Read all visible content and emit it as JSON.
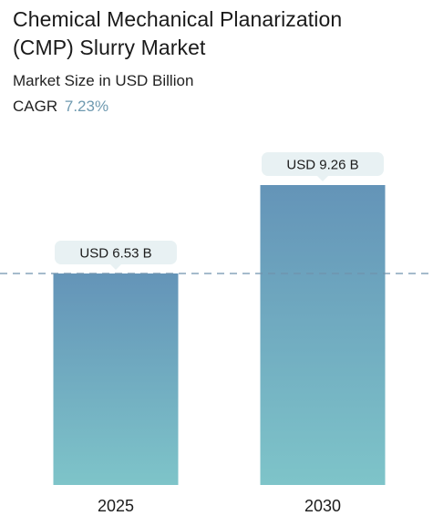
{
  "header": {
    "title_line1": "Chemical Mechanical Planarization",
    "title_line2": "(CMP) Slurry Market",
    "subtitle": "Market Size in USD Billion",
    "cagr_label": "CAGR",
    "cagr_value": "7.23%"
  },
  "colors": {
    "bar_top": "#6494b8",
    "bar_bottom": "#7ec4c9",
    "label_bg": "#e8f1f3",
    "reference_line": "#6f92ad",
    "cagr_accent": "#6f9ab0"
  },
  "chart_data": {
    "type": "bar",
    "title": "Chemical Mechanical Planarization (CMP) Slurry Market",
    "subtitle": "Market Size in USD Billion",
    "xlabel": "",
    "ylabel": "",
    "categories": [
      "2025",
      "2030"
    ],
    "values": [
      6.53,
      9.26
    ],
    "data_labels": [
      "USD 6.53 B",
      "USD 9.26 B"
    ],
    "unit": "USD Billion",
    "cagr": "7.23%",
    "ylim": [
      0,
      9.26
    ],
    "grid": false,
    "legend": "none",
    "reference_line": {
      "value": 6.53,
      "style": "dashed"
    }
  }
}
